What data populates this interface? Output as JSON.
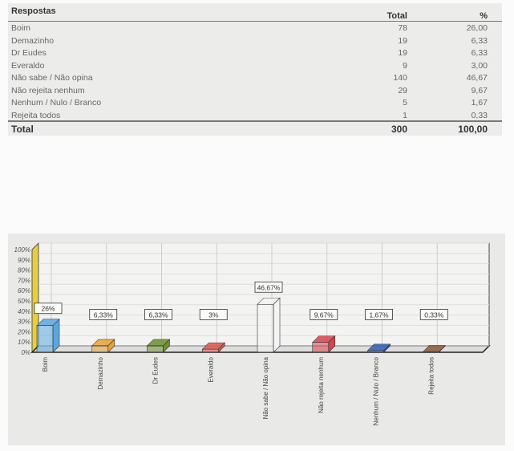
{
  "table": {
    "headers": [
      "Respostas",
      "Total",
      "%"
    ],
    "rows": [
      [
        "Boim",
        "78",
        "26,00"
      ],
      [
        "Demazinho",
        "19",
        "6,33"
      ],
      [
        "Dr Eudes",
        "19",
        "6,33"
      ],
      [
        "Everaldo",
        "9",
        "3,00"
      ],
      [
        "Não sabe / Não opina",
        "140",
        "46,67"
      ],
      [
        "Não rejeita nenhum",
        "29",
        "9,67"
      ],
      [
        "Nenhum / Nulo / Branco",
        "5",
        "1,67"
      ],
      [
        "Rejeita todos",
        "1",
        "0,33"
      ]
    ],
    "total": [
      "Total",
      "300",
      "100,00"
    ]
  },
  "chart_data": {
    "type": "bar",
    "style": "3d",
    "categories": [
      "Boim",
      "Demazinho",
      "Dr Eudes",
      "Everaldo",
      "Não sabe / Não opina",
      "Não rejeita nenhum",
      "Nenhum / Nulo / Branco",
      "Rejeita todos"
    ],
    "values": [
      26,
      6.33,
      6.33,
      3,
      46.67,
      9.67,
      1.67,
      0.33
    ],
    "data_labels": [
      "26%",
      "6,33%",
      "6,33%",
      "3%",
      "46,67%",
      "9,67%",
      "1,67%",
      "0,33%"
    ],
    "colors": [
      "#5aa7e0",
      "#e8a23a",
      "#6d8f2c",
      "#e0564c",
      "#f4f4f4",
      "#d9424a",
      "#2f5fb8",
      "#8a5a3a"
    ],
    "yticks": [
      "0%",
      "10%",
      "20%",
      "30%",
      "40%",
      "50%",
      "60%",
      "70%",
      "80%",
      "90%",
      "100%"
    ],
    "ylim": [
      0,
      100
    ],
    "grid": true,
    "legend": "none"
  }
}
